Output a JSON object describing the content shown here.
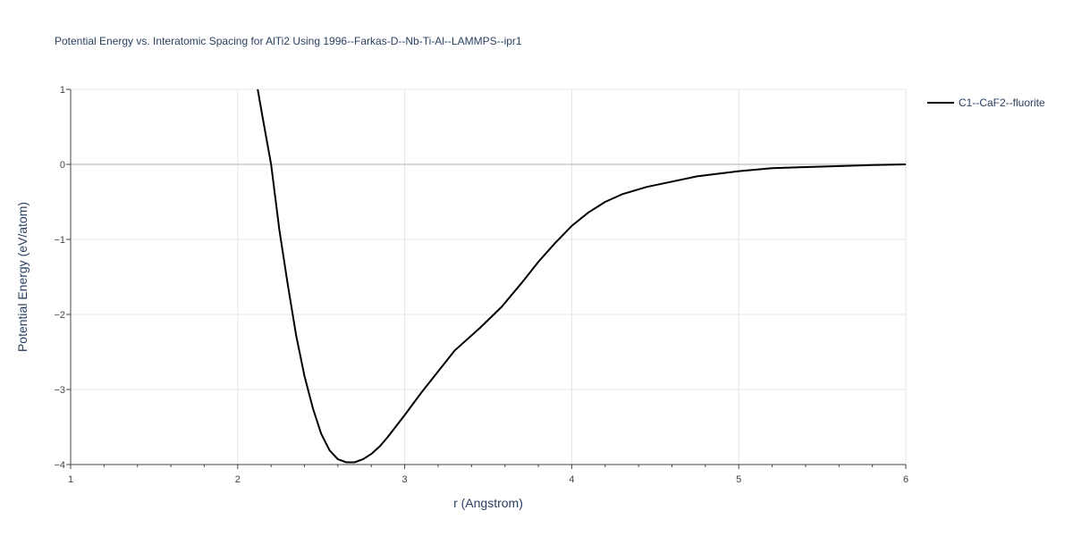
{
  "chart_data": {
    "type": "line",
    "title": "Potential Energy vs. Interatomic Spacing for AlTi2 Using 1996--Farkas-D--Nb-Ti-Al--LAMMPS--ipr1",
    "xlabel": "r (Angstrom)",
    "ylabel": "Potential Energy (eV/atom)",
    "xlim": [
      1,
      6
    ],
    "ylim": [
      -4,
      1
    ],
    "x_ticks": [
      1,
      2,
      3,
      4,
      5,
      6
    ],
    "y_ticks": [
      1,
      0,
      -1,
      -2,
      -3,
      -4
    ],
    "x_tick_labels": [
      "1",
      "2",
      "3",
      "4",
      "5",
      "6"
    ],
    "y_tick_labels": [
      "1",
      "0",
      "−1",
      "−2",
      "−3",
      "−4"
    ],
    "grid": true,
    "legend_position": "top-right",
    "series": [
      {
        "name": "C1--CaF2--fluorite",
        "color": "#000000",
        "x": [
          2.12,
          2.15,
          2.18,
          2.2,
          2.25,
          2.3,
          2.35,
          2.4,
          2.45,
          2.5,
          2.55,
          2.6,
          2.65,
          2.7,
          2.75,
          2.8,
          2.85,
          2.9,
          3.0,
          3.1,
          3.2,
          3.3,
          3.45,
          3.58,
          3.7,
          3.8,
          3.9,
          4.0,
          4.1,
          4.2,
          4.3,
          4.45,
          4.6,
          4.75,
          5.0,
          5.2,
          5.5,
          5.8,
          6.0
        ],
        "y": [
          1.0,
          0.62,
          0.25,
          0.0,
          -0.88,
          -1.6,
          -2.28,
          -2.82,
          -3.25,
          -3.59,
          -3.81,
          -3.93,
          -3.97,
          -3.97,
          -3.93,
          -3.86,
          -3.76,
          -3.63,
          -3.34,
          -3.04,
          -2.76,
          -2.48,
          -2.18,
          -1.9,
          -1.58,
          -1.3,
          -1.05,
          -0.82,
          -0.64,
          -0.5,
          -0.4,
          -0.3,
          -0.23,
          -0.16,
          -0.09,
          -0.05,
          -0.03,
          -0.01,
          0.0
        ]
      }
    ]
  }
}
